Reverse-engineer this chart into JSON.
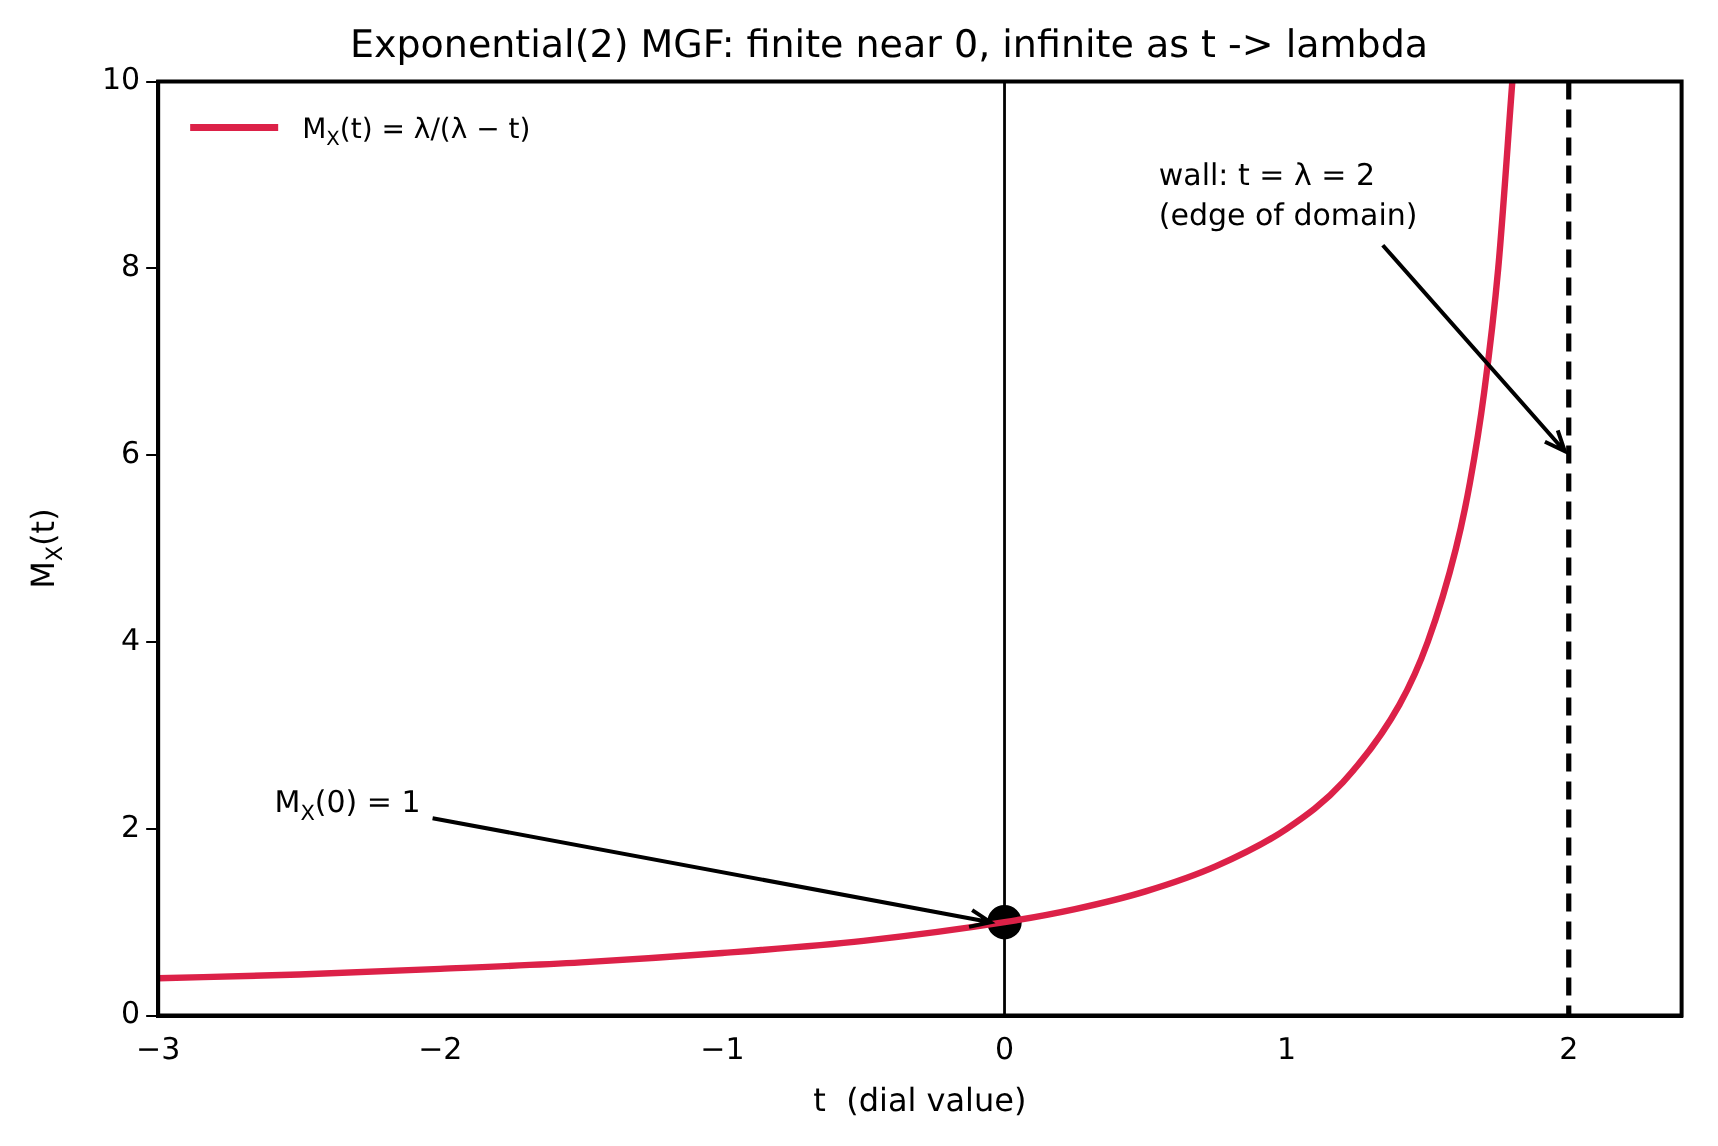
{
  "chart_data": {
    "type": "line",
    "title": "Exponential(2) MGF: finite near 0, infinite as t -> lambda",
    "xlabel": "t  (dial value)",
    "ylabel": "M$_{X}$(t)",
    "xlim": [
      -3,
      2.4
    ],
    "ylim": [
      0,
      10
    ],
    "xticks": [
      -3,
      -2,
      -1,
      0,
      1,
      2
    ],
    "yticks": [
      0,
      2,
      4,
      6,
      8,
      10
    ],
    "legend": "top left",
    "series": [
      {
        "name": "M$_{X}$(t) = λ/(λ − t)",
        "type": "line",
        "color": "#dc2148",
        "marker": "none",
        "x": [
          -3,
          -2.5,
          -2,
          -1.5,
          -1,
          -0.5,
          0,
          0.25,
          0.5,
          0.75,
          1,
          1.2,
          1.4,
          1.5,
          1.6,
          1.65,
          1.7,
          1.75,
          1.8
        ],
        "values": [
          0.4,
          0.44,
          0.5,
          0.57,
          0.67,
          0.8,
          1,
          1.14,
          1.33,
          1.6,
          2,
          2.5,
          3.33,
          4,
          5,
          5.71,
          6.67,
          8,
          10
        ]
      },
      {
        "type": "scatter",
        "color": "#000000",
        "marker": "circle",
        "x": [
          0
        ],
        "values": [
          1
        ]
      }
    ],
    "ref_lines": [
      {
        "axis": "x",
        "value": 0,
        "color": "#000000",
        "line_style": "solid"
      },
      {
        "axis": "x",
        "value": 2,
        "color": "#000000",
        "line_style": "dashed"
      }
    ],
    "annotations": [
      {
        "text": "M$_{X}$(0) = 1",
        "x": 0,
        "y": 1
      },
      {
        "text": "wall: t = λ = 2\n(edge of domain)",
        "x": 2,
        "y": 6
      }
    ]
  }
}
